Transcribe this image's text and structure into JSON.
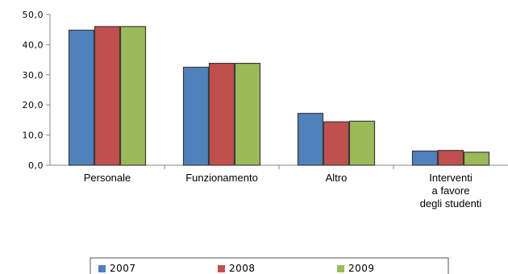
{
  "chart_data": {
    "type": "bar",
    "categories": [
      "Personale",
      "Funzionamento",
      "Altro",
      "Interventi a favore degli studenti"
    ],
    "category_lines": [
      [
        "Personale"
      ],
      [
        "Funzionamento"
      ],
      [
        "Altro"
      ],
      [
        "Interventi",
        "a favore",
        "degli studenti"
      ]
    ],
    "series": [
      {
        "name": "2007",
        "color": "#4F81BD",
        "values": [
          44.8,
          32.5,
          17.2,
          4.7
        ]
      },
      {
        "name": "2008",
        "color": "#C0504D",
        "values": [
          46.0,
          33.8,
          14.4,
          4.9
        ]
      },
      {
        "name": "2009",
        "color": "#9BBB59",
        "values": [
          46.0,
          33.8,
          14.6,
          4.3
        ]
      }
    ],
    "ylim": [
      0,
      50
    ],
    "yticks": [
      "0,0",
      "10,0",
      "20,0",
      "30,0",
      "40,0",
      "50,0"
    ],
    "grid": false,
    "legend_position": "bottom"
  }
}
